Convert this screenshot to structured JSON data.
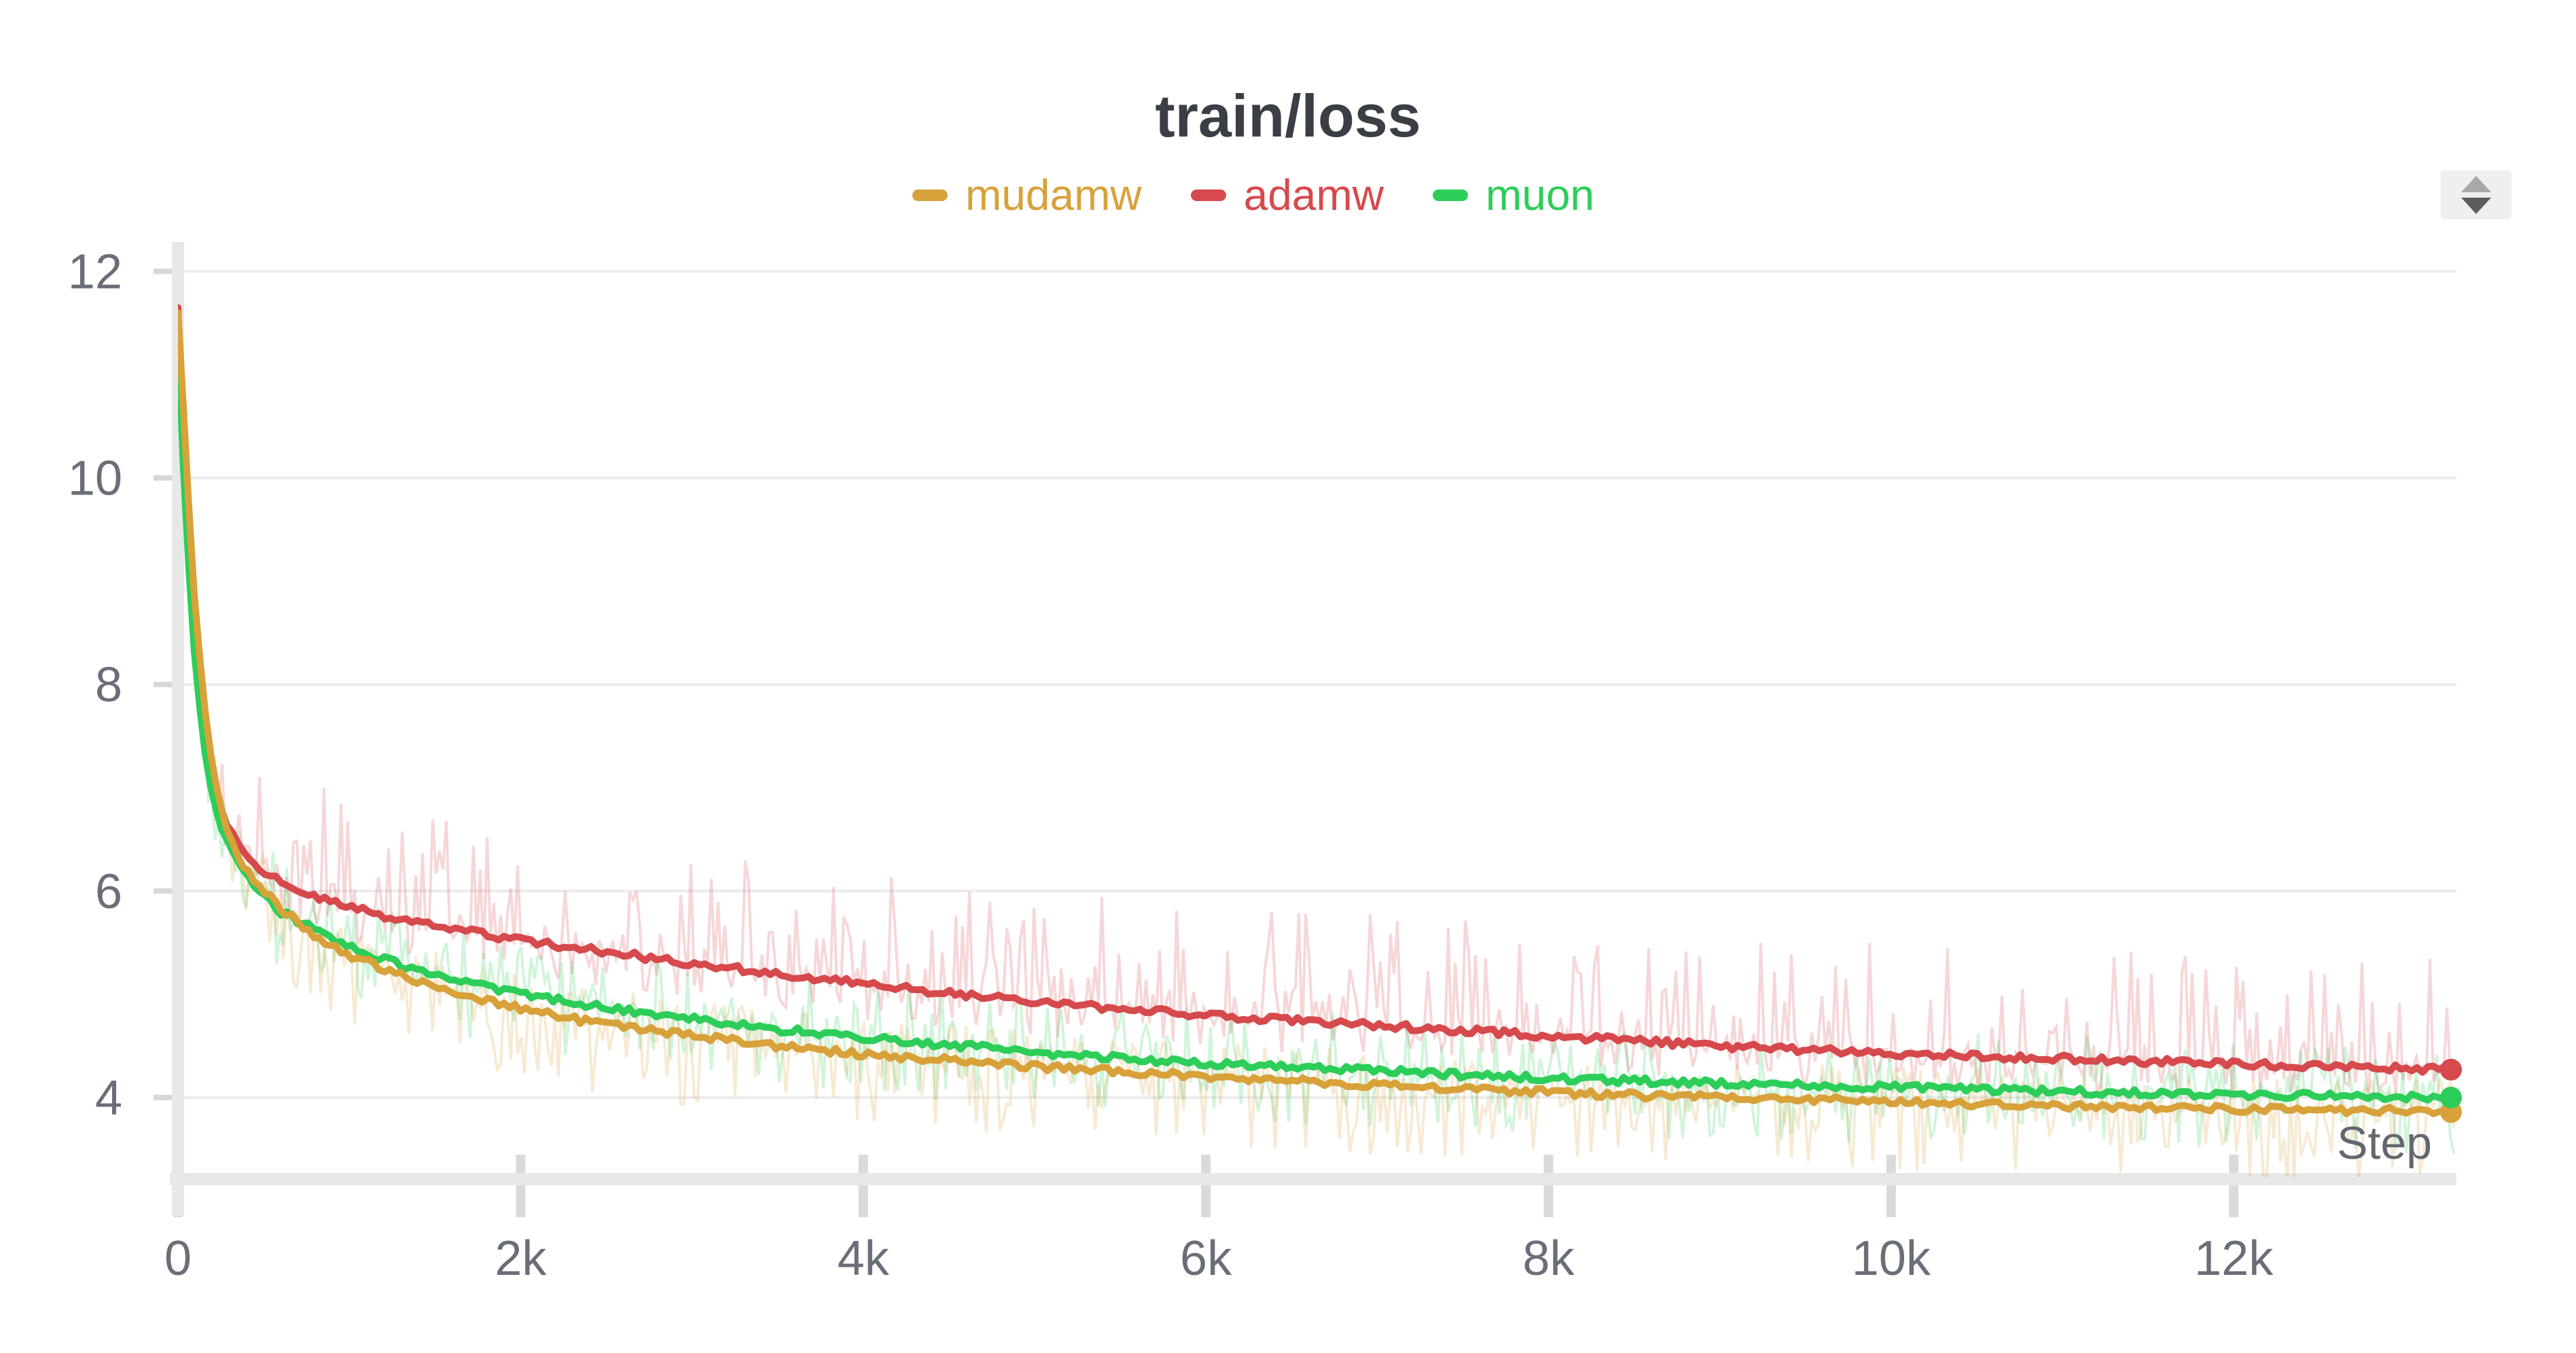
{
  "header": {
    "title": "train/loss"
  },
  "controls": {
    "panel_stepper_icon": "up-down-arrows"
  },
  "chart_data": {
    "type": "line",
    "title": "train/loss",
    "xlabel": "Step",
    "ylabel": "",
    "x_range": [
      0,
      13300
    ],
    "ylim": [
      3.21,
      12.26
    ],
    "y_ticks": [
      4,
      6,
      8,
      10,
      12
    ],
    "x_ticks": [
      {
        "v": 0,
        "label": "0"
      },
      {
        "v": 2000,
        "label": "2k"
      },
      {
        "v": 4000,
        "label": "4k"
      },
      {
        "v": 6000,
        "label": "6k"
      },
      {
        "v": 8000,
        "label": "8k"
      },
      {
        "v": 10000,
        "label": "10k"
      },
      {
        "v": 12000,
        "label": "12k"
      }
    ],
    "grid": "horizontal",
    "legend_position": "top-center",
    "series": [
      {
        "name": "mudamw",
        "color": "#D9A13A",
        "noise_up": 0.35,
        "noise_down": 0.7,
        "points": [
          [
            0,
            11.6
          ],
          [
            25,
            10.9
          ],
          [
            50,
            10.1
          ],
          [
            75,
            9.4
          ],
          [
            100,
            8.75
          ],
          [
            150,
            7.85
          ],
          [
            200,
            7.2
          ],
          [
            250,
            6.8
          ],
          [
            300,
            6.52
          ],
          [
            400,
            6.2
          ],
          [
            500,
            6.0
          ],
          [
            600,
            5.84
          ],
          [
            800,
            5.56
          ],
          [
            1000,
            5.38
          ],
          [
            1200,
            5.24
          ],
          [
            1500,
            5.08
          ],
          [
            1750,
            4.97
          ],
          [
            2000,
            4.86
          ],
          [
            2500,
            4.7
          ],
          [
            3000,
            4.6
          ],
          [
            3500,
            4.5
          ],
          [
            4000,
            4.42
          ],
          [
            4500,
            4.36
          ],
          [
            5000,
            4.3
          ],
          [
            5500,
            4.25
          ],
          [
            6000,
            4.2
          ],
          [
            6500,
            4.16
          ],
          [
            7000,
            4.12
          ],
          [
            7500,
            4.09
          ],
          [
            8000,
            4.05
          ],
          [
            8500,
            4.02
          ],
          [
            9000,
            4.0
          ],
          [
            9500,
            3.98
          ],
          [
            10000,
            3.96
          ],
          [
            10500,
            3.94
          ],
          [
            11000,
            3.92
          ],
          [
            11500,
            3.9
          ],
          [
            12000,
            3.89
          ],
          [
            12500,
            3.88
          ],
          [
            13000,
            3.87
          ],
          [
            13300,
            3.86
          ]
        ]
      },
      {
        "name": "adamw",
        "color": "#D6494C",
        "noise_up": 1.1,
        "noise_down": 0.35,
        "points": [
          [
            0,
            11.65
          ],
          [
            25,
            10.7
          ],
          [
            50,
            9.9
          ],
          [
            75,
            9.2
          ],
          [
            100,
            8.6
          ],
          [
            150,
            7.7
          ],
          [
            200,
            7.1
          ],
          [
            250,
            6.8
          ],
          [
            300,
            6.6
          ],
          [
            400,
            6.35
          ],
          [
            500,
            6.2
          ],
          [
            600,
            6.08
          ],
          [
            800,
            5.94
          ],
          [
            1000,
            5.84
          ],
          [
            1200,
            5.76
          ],
          [
            1500,
            5.66
          ],
          [
            2000,
            5.52
          ],
          [
            2500,
            5.41
          ],
          [
            3000,
            5.3
          ],
          [
            3500,
            5.2
          ],
          [
            4000,
            5.1
          ],
          [
            4500,
            5.01
          ],
          [
            5000,
            4.93
          ],
          [
            5500,
            4.86
          ],
          [
            6000,
            4.8
          ],
          [
            6500,
            4.75
          ],
          [
            7000,
            4.7
          ],
          [
            7500,
            4.65
          ],
          [
            8000,
            4.6
          ],
          [
            8500,
            4.55
          ],
          [
            9000,
            4.5
          ],
          [
            9500,
            4.46
          ],
          [
            10000,
            4.43
          ],
          [
            10500,
            4.4
          ],
          [
            11000,
            4.38
          ],
          [
            11500,
            4.35
          ],
          [
            12000,
            4.33
          ],
          [
            12500,
            4.3
          ],
          [
            13000,
            4.28
          ],
          [
            13300,
            4.27
          ]
        ]
      },
      {
        "name": "muon",
        "color": "#2DCD59",
        "noise_up": 0.55,
        "noise_down": 0.55,
        "points": [
          [
            0,
            11.35
          ],
          [
            25,
            10.3
          ],
          [
            50,
            9.5
          ],
          [
            75,
            8.8
          ],
          [
            100,
            8.2
          ],
          [
            150,
            7.4
          ],
          [
            200,
            6.92
          ],
          [
            250,
            6.62
          ],
          [
            300,
            6.42
          ],
          [
            400,
            6.14
          ],
          [
            500,
            5.95
          ],
          [
            600,
            5.8
          ],
          [
            800,
            5.62
          ],
          [
            1000,
            5.47
          ],
          [
            1200,
            5.34
          ],
          [
            1500,
            5.19
          ],
          [
            2000,
            5.0
          ],
          [
            2500,
            4.87
          ],
          [
            3000,
            4.76
          ],
          [
            3500,
            4.66
          ],
          [
            4000,
            4.58
          ],
          [
            4500,
            4.51
          ],
          [
            5000,
            4.44
          ],
          [
            5500,
            4.38
          ],
          [
            6000,
            4.33
          ],
          [
            6500,
            4.29
          ],
          [
            7000,
            4.26
          ],
          [
            7500,
            4.22
          ],
          [
            8000,
            4.19
          ],
          [
            8500,
            4.16
          ],
          [
            9000,
            4.14
          ],
          [
            9500,
            4.12
          ],
          [
            10000,
            4.1
          ],
          [
            10500,
            4.08
          ],
          [
            11000,
            4.06
          ],
          [
            11500,
            4.04
          ],
          [
            12000,
            4.03
          ],
          [
            12500,
            4.02
          ],
          [
            13000,
            4.01
          ],
          [
            13300,
            4.0
          ]
        ]
      }
    ]
  }
}
